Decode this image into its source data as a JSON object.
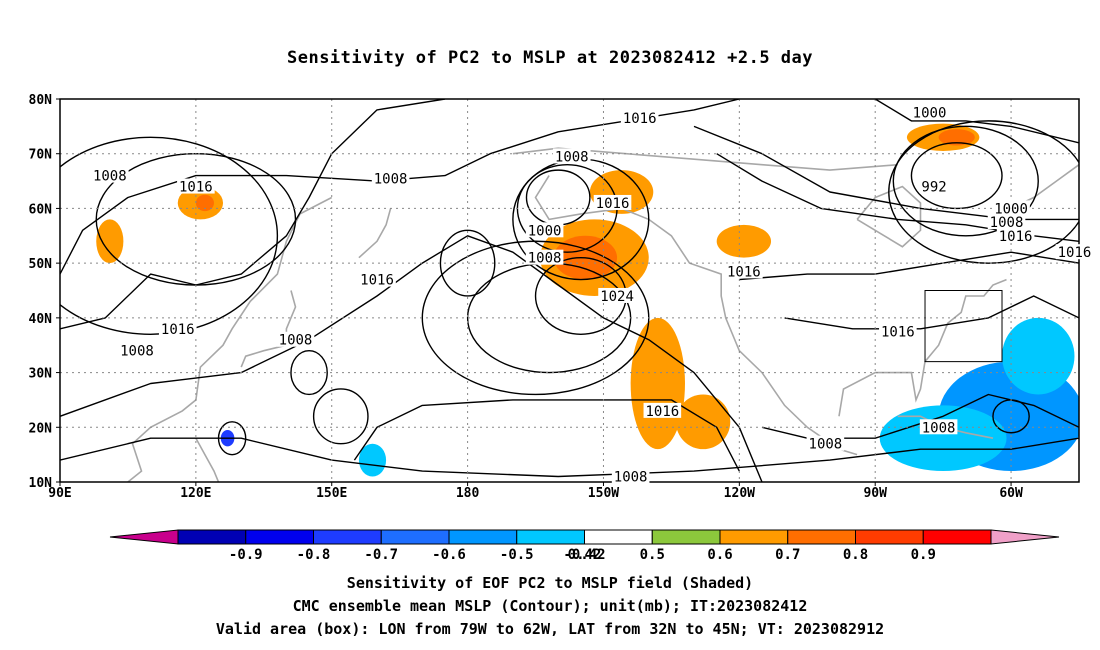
{
  "title": "Sensitivity of PC2 to MSLP at 2023082412 +2.5 day",
  "captions": {
    "line1": "Sensitivity of EOF PC2 to MSLP field (Shaded)",
    "line2": "CMC ensemble mean MSLP (Contour); unit(mb); IT:2023082412",
    "line3": "Valid area (box): LON from 79W to 62W, LAT from 32N to 45N; VT: 2023082912"
  },
  "axes": {
    "lat_labels": [
      "80N",
      "70N",
      "60N",
      "50N",
      "40N",
      "30N",
      "20N",
      "10N"
    ],
    "lat_values": [
      80,
      70,
      60,
      50,
      40,
      30,
      20,
      10
    ],
    "lon_labels": [
      "90E",
      "120E",
      "150E",
      "180",
      "150W",
      "120W",
      "90W",
      "60W"
    ],
    "lon_values": [
      90,
      120,
      150,
      180,
      210,
      240,
      270,
      300
    ],
    "lon_range": [
      90,
      315
    ],
    "lat_range": [
      10,
      80
    ],
    "grid": "dotted"
  },
  "colorbar": {
    "labels": [
      "-0.9",
      "-0.8",
      "-0.7",
      "-0.6",
      "-0.5",
      "-0.42",
      "0.42",
      "0.5",
      "0.6",
      "0.7",
      "0.8",
      "0.9"
    ],
    "colors": [
      "#0000b4",
      "#0000ee",
      "#1e3cff",
      "#1e6eff",
      "#0096ff",
      "#00c8ff",
      "#ffffff",
      "#8cc83c",
      "#ff9b00",
      "#ff6e00",
      "#ff3c00",
      "#ff0000"
    ],
    "under_color": "#c8008c",
    "over_color": "#f0a0c8"
  },
  "valid_box": {
    "lon_min": -79,
    "lon_max": -62,
    "lat_min": 32,
    "lat_max": 45
  },
  "contour_labels": [
    {
      "text": "1016",
      "lon": 218,
      "lat": 76.5
    },
    {
      "text": "1008",
      "lon": 203,
      "lat": 69.5
    },
    {
      "text": "1008",
      "lon": 101,
      "lat": 66
    },
    {
      "text": "1016",
      "lon": 120,
      "lat": 64
    },
    {
      "text": "1008",
      "lon": 163,
      "lat": 65.5
    },
    {
      "text": "1000",
      "lon": 282,
      "lat": 77.5
    },
    {
      "text": "992",
      "lon": 283,
      "lat": 64
    },
    {
      "text": "1000",
      "lon": 300,
      "lat": 60
    },
    {
      "text": "1008",
      "lon": 299,
      "lat": 57.5
    },
    {
      "text": "1016",
      "lon": 301,
      "lat": 55
    },
    {
      "text": "1016",
      "lon": 314,
      "lat": 52
    },
    {
      "text": "1016",
      "lon": 212,
      "lat": 61
    },
    {
      "text": "1000",
      "lon": 197,
      "lat": 56
    },
    {
      "text": "1008",
      "lon": 197,
      "lat": 51
    },
    {
      "text": "1024",
      "lon": 213,
      "lat": 44
    },
    {
      "text": "1016",
      "lon": 241,
      "lat": 48.5
    },
    {
      "text": "1016",
      "lon": 275,
      "lat": 37.5
    },
    {
      "text": "1016",
      "lon": 116,
      "lat": 38
    },
    {
      "text": "1016",
      "lon": 160,
      "lat": 47
    },
    {
      "text": "1008",
      "lon": 107,
      "lat": 34
    },
    {
      "text": "1008",
      "lon": 142,
      "lat": 36
    },
    {
      "text": "1016",
      "lon": 223,
      "lat": 23
    },
    {
      "text": "1008",
      "lon": 216,
      "lat": 11
    },
    {
      "text": "1008",
      "lon": 259,
      "lat": 17
    },
    {
      "text": "1008",
      "lon": 284,
      "lat": 20
    }
  ],
  "shaded_areas": [
    {
      "value": 0.5,
      "lon": 222,
      "lat": 28,
      "rlon": 6,
      "rlat": 12
    },
    {
      "value": 0.5,
      "lon": 232,
      "lat": 21,
      "rlon": 6,
      "rlat": 5
    },
    {
      "value": 0.5,
      "lon": 208,
      "lat": 51,
      "rlon": 12,
      "rlat": 7
    },
    {
      "value": 0.6,
      "lon": 206,
      "lat": 51,
      "rlon": 7,
      "rlat": 4
    },
    {
      "value": 0.5,
      "lon": 214,
      "lat": 63,
      "rlon": 7,
      "rlat": 4
    },
    {
      "value": 0.5,
      "lon": 241,
      "lat": 54,
      "rlon": 6,
      "rlat": 3
    },
    {
      "value": 0.5,
      "lon": 121,
      "lat": 61,
      "rlon": 5,
      "rlat": 3
    },
    {
      "value": 0.6,
      "lon": 122,
      "lat": 61,
      "rlon": 2,
      "rlat": 1.5
    },
    {
      "value": 0.5,
      "lon": 101,
      "lat": 54,
      "rlon": 3,
      "rlat": 4
    },
    {
      "value": 0.5,
      "lon": 285,
      "lat": 73,
      "rlon": 8,
      "rlat": 2.5
    },
    {
      "value": 0.6,
      "lon": 288,
      "lat": 73,
      "rlon": 4,
      "rlat": 1.5
    },
    {
      "value": -0.5,
      "lon": 300,
      "lat": 22,
      "rlon": 16,
      "rlat": 10
    },
    {
      "value": -0.42,
      "lon": 285,
      "lat": 18,
      "rlon": 14,
      "rlat": 6
    },
    {
      "value": -0.42,
      "lon": 306,
      "lat": 33,
      "rlon": 8,
      "rlat": 7
    },
    {
      "value": -0.42,
      "lon": 159,
      "lat": 14,
      "rlon": 3,
      "rlat": 3
    },
    {
      "value": -0.7,
      "lon": 127,
      "lat": 18,
      "rlon": 1.5,
      "rlat": 1.5
    }
  ]
}
